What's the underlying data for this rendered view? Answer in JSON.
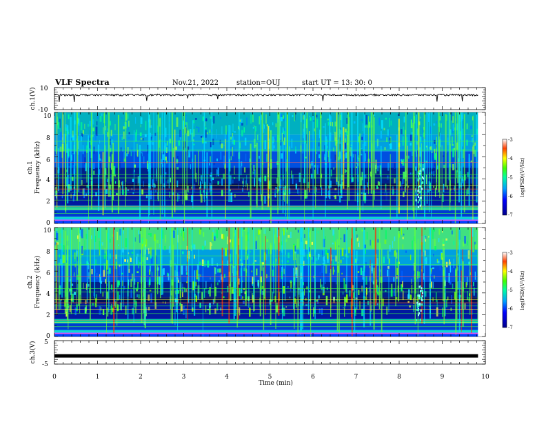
{
  "header": {
    "title": "VLF Spectra",
    "date": "Nov.21, 2022",
    "station": "station=OUJ",
    "start": "start  UT =   13: 30: 0"
  },
  "colors": {
    "spectrogram_low": "#00008b",
    "spectrogram_mid": "#0080ff",
    "spectrogram_high": "#00ff80",
    "spectrogram_peak": "#ff0000",
    "trace": "#000000"
  },
  "chart_data": [
    {
      "type": "line",
      "panel": "ch1-waveform",
      "ylabel": "ch.1(V)",
      "ylim": [
        -10,
        10
      ],
      "ytick_labels": [
        "10",
        "-10"
      ],
      "baseline": 3.3,
      "xlim": [
        0,
        10
      ]
    },
    {
      "type": "heatmap",
      "panel": "ch1-spectrogram",
      "ylabel": "ch.1\nFrequency (kHz)",
      "ylabel_lines": [
        "ch.1",
        "Frequency (kHz)"
      ],
      "ylim": [
        0,
        10
      ],
      "ytick_labels": [
        "10",
        "8",
        "6",
        "4",
        "2",
        "0"
      ],
      "xlim": [
        0,
        10
      ],
      "data_end_min": 9.83,
      "colorbar": {
        "label": "log(PSD)(V²/Hz)",
        "range": [
          -7,
          -3
        ],
        "ticks": [
          "-3",
          "-4",
          "-5",
          "-6",
          "-7"
        ]
      }
    },
    {
      "type": "heatmap",
      "panel": "ch2-spectrogram",
      "ylabel": "ch.2\nFrequency (kHz)",
      "ylabel_lines": [
        "ch.2",
        "Frequency (kHz)"
      ],
      "ylim": [
        0,
        10
      ],
      "ytick_labels": [
        "10",
        "8",
        "6",
        "4",
        "2",
        "0"
      ],
      "xlim": [
        0,
        10
      ],
      "data_end_min": 9.83,
      "colorbar": {
        "label": "log(PSD)(V²/Hz)",
        "range": [
          -7,
          -3
        ],
        "ticks": [
          "-3",
          "-4",
          "-5",
          "-6",
          "-7"
        ]
      }
    },
    {
      "type": "line",
      "panel": "ch3-waveform",
      "ylabel": "ch.3(V)",
      "ylim": [
        -5,
        5
      ],
      "ytick_labels": [
        "5",
        "-5"
      ],
      "baseline": -1.5,
      "xlim": [
        0,
        10
      ]
    }
  ],
  "xaxis": {
    "label": "Time (min)",
    "ticks": [
      "0",
      "1",
      "2",
      "3",
      "4",
      "5",
      "6",
      "7",
      "8",
      "9",
      "10"
    ]
  }
}
